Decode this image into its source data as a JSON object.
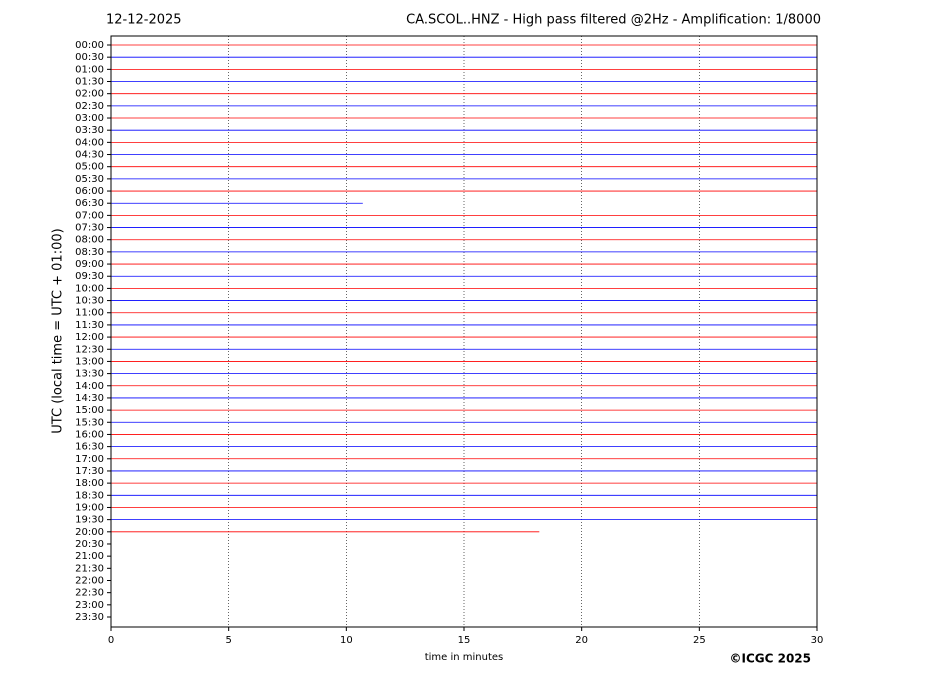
{
  "chart_data": {
    "type": "helicorder",
    "title_left": "12-12-2025",
    "title": "CA.SCOL..HNZ - High pass filtered @2Hz - Amplification: 1/8000",
    "ylabel": "UTC (local time = UTC + 01:00)",
    "xlabel": "time in minutes",
    "credit": "©ICGC 2025",
    "categories": [
      "00:00",
      "00:30",
      "01:00",
      "01:30",
      "02:00",
      "02:30",
      "03:00",
      "03:30",
      "04:00",
      "04:30",
      "05:00",
      "05:30",
      "06:00",
      "06:30",
      "07:00",
      "07:30",
      "08:00",
      "08:30",
      "09:00",
      "09:30",
      "10:00",
      "10:30",
      "11:00",
      "11:30",
      "12:00",
      "12:30",
      "13:00",
      "13:30",
      "14:00",
      "14:30",
      "15:00",
      "15:30",
      "16:00",
      "16:30",
      "17:00",
      "17:30",
      "18:00",
      "18:30",
      "19:00",
      "19:30",
      "20:00",
      "20:30",
      "21:00",
      "21:30",
      "22:00",
      "22:30",
      "23:00",
      "23:30"
    ],
    "values": [
      30,
      30,
      30,
      30,
      30,
      30,
      30,
      30,
      30,
      30,
      30,
      30,
      30,
      10.7,
      30,
      30,
      30,
      30,
      30,
      30,
      30,
      30,
      30,
      30,
      30,
      30,
      30,
      30,
      30,
      30,
      30,
      30,
      30,
      30,
      30,
      30,
      30,
      30,
      30,
      30,
      18.2,
      null,
      null,
      null,
      null,
      null,
      null,
      null
    ],
    "colors": [
      "#ff0000",
      "#0000ff"
    ],
    "xlim": [
      0,
      30
    ],
    "xticks": [
      0,
      5,
      10,
      15,
      20,
      25,
      30
    ],
    "grid": true
  }
}
